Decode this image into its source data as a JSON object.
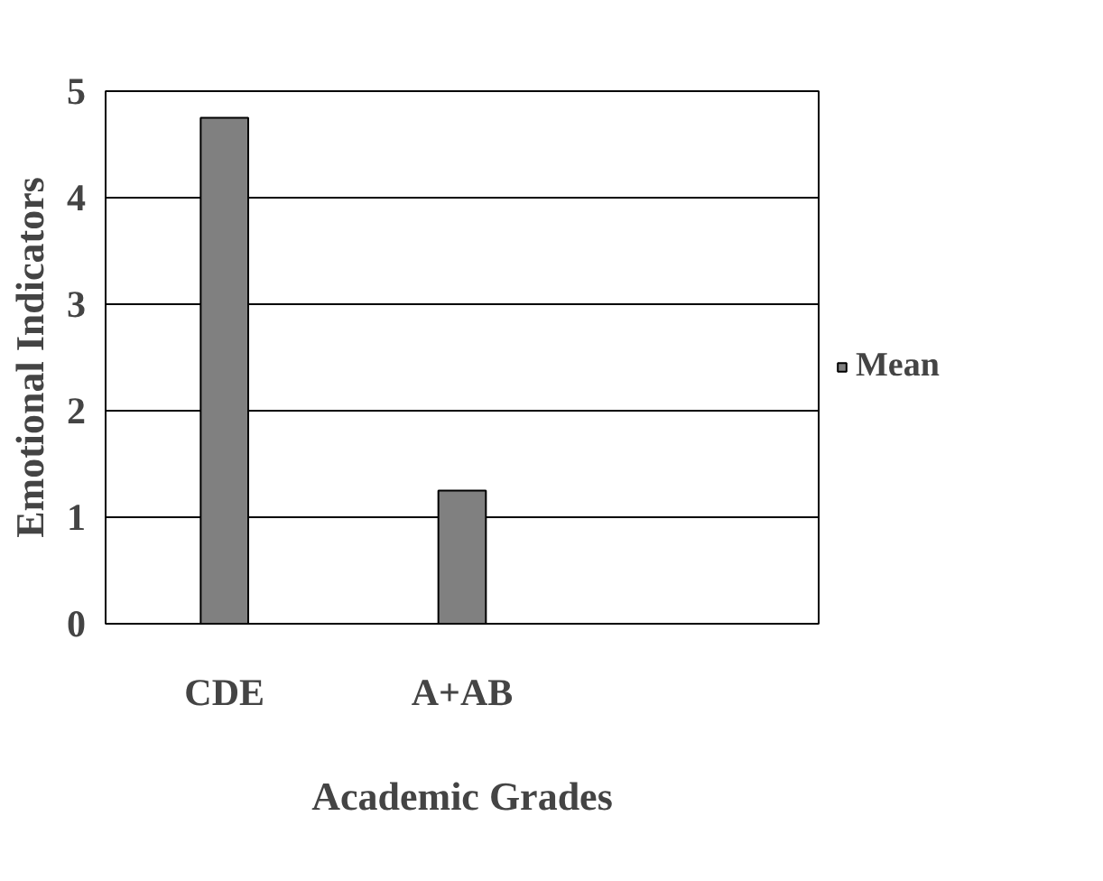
{
  "chart_data": {
    "type": "bar",
    "xlabel": "Academic Grades",
    "ylabel": "Emotional Indicators",
    "categories": [
      "CDE",
      "A+AB",
      null
    ],
    "series": [
      {
        "name": "Mean",
        "color": "#808080",
        "values": [
          4.75,
          1.25,
          null
        ]
      }
    ],
    "ylim": [
      0,
      5
    ],
    "yticks": [
      0,
      1,
      2,
      3,
      4,
      5
    ],
    "grid": "y",
    "legend": "right"
  }
}
